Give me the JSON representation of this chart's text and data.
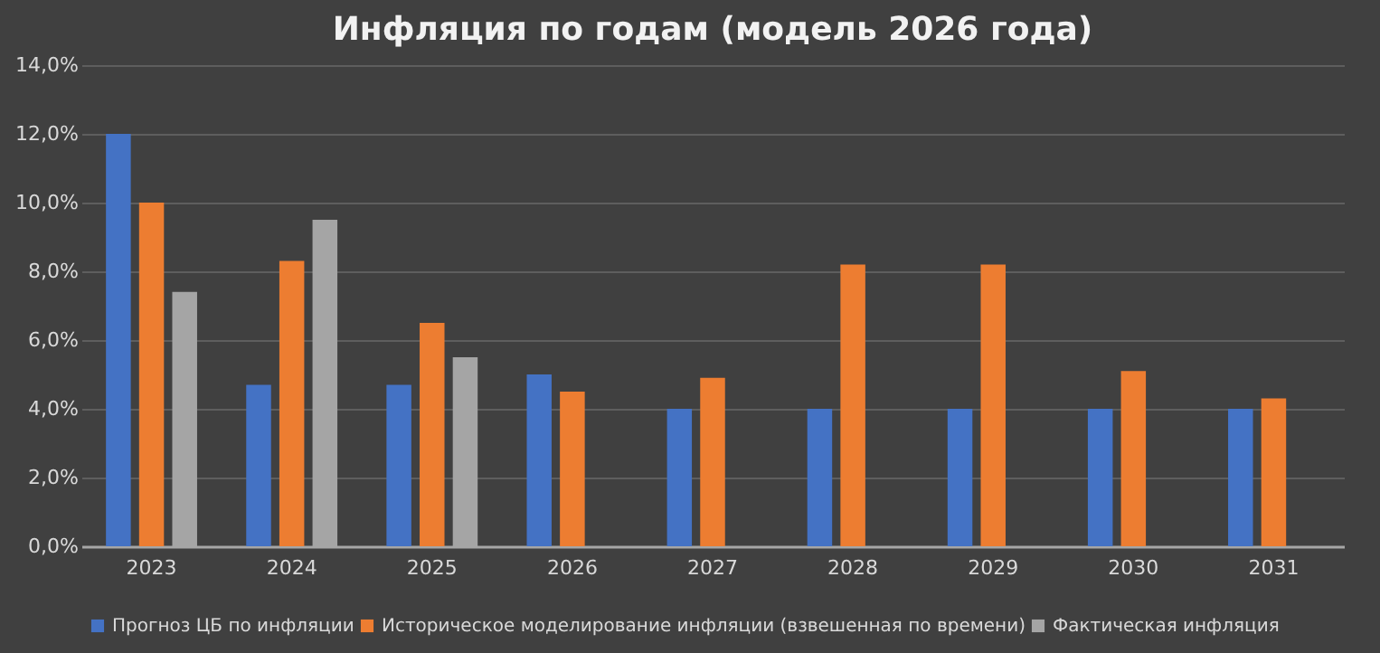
{
  "chart_data": {
    "type": "bar",
    "title": "Инфляция по годам (модель 2026 года)",
    "categories": [
      "2023",
      "2024",
      "2025",
      "2026",
      "2027",
      "2028",
      "2029",
      "2030",
      "2031"
    ],
    "series": [
      {
        "name": "Прогноз ЦБ по инфляции",
        "color": "#4472c4",
        "values": [
          12.0,
          4.7,
          4.7,
          5.0,
          4.0,
          4.0,
          4.0,
          4.0,
          4.0
        ]
      },
      {
        "name": "Историческое моделирование инфляции (взвешенная по времени)",
        "color": "#ed7d31",
        "values": [
          10.0,
          8.3,
          6.5,
          4.5,
          4.9,
          8.2,
          8.2,
          5.1,
          4.3
        ]
      },
      {
        "name": "Фактическая инфляция",
        "color": "#a5a5a5",
        "values": [
          7.4,
          9.5,
          5.5,
          null,
          null,
          null,
          null,
          null,
          null
        ]
      }
    ],
    "ylim": [
      0,
      14
    ],
    "yticks": [
      {
        "value": 0,
        "label": "0,0%"
      },
      {
        "value": 2,
        "label": "2,0%"
      },
      {
        "value": 4,
        "label": "4,0%"
      },
      {
        "value": 6,
        "label": "6,0%"
      },
      {
        "value": 8,
        "label": "8,0%"
      },
      {
        "value": 10,
        "label": "10,0%"
      },
      {
        "value": 12,
        "label": "12,0%"
      },
      {
        "value": 14,
        "label": "14,0%"
      }
    ],
    "grid": "y",
    "legend": "bottom"
  }
}
